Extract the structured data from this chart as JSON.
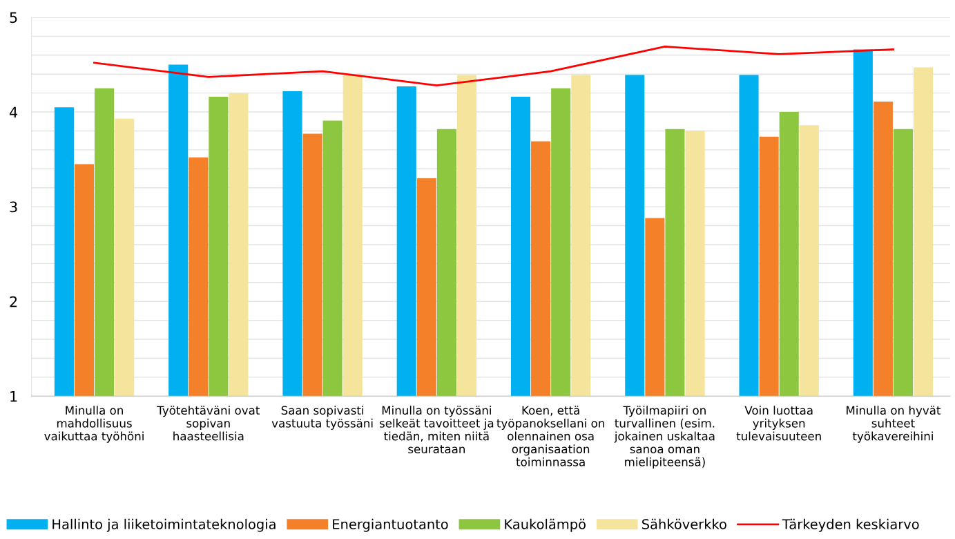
{
  "chart_data": {
    "type": "bar",
    "categories": [
      "Minulla on\nmahdollisuus\nvaikuttaa työhöni",
      "Työtehtäväni ovat\nsopivan\nhaasteellisia",
      "Saan sopivasti\nvastuuta työssäni",
      "Minulla on työssäni\nselkeät tavoitteet ja\ntiedän, miten niitä\nseurataan",
      "Koen, että\ntyöpanoksellani on\nolennainen osa\norganisaation\ntoiminnassa",
      "Työilmapiiri on\nturvallinen (esim.\njokainen uskaltaa\nsanoa oman\nmielipiteensä)",
      "Voin luottaa\nyrityksen\ntulevaisuuteen",
      "Minulla on hyvät\nsuhteet\ntyökavereihini"
    ],
    "series": [
      {
        "name": "Hallinto ja liiketoimintateknologia",
        "color": "#00b0f0",
        "values": [
          4.05,
          4.5,
          4.22,
          4.27,
          4.16,
          4.39,
          4.39,
          4.66
        ]
      },
      {
        "name": "Energiantuotanto",
        "color": "#f4812a",
        "values": [
          3.45,
          3.52,
          3.77,
          3.3,
          3.69,
          2.88,
          3.74,
          4.11
        ]
      },
      {
        "name": "Kaukolämpö",
        "color": "#8dc63f",
        "values": [
          4.25,
          4.16,
          3.91,
          3.82,
          4.25,
          3.82,
          4.0,
          3.82
        ]
      },
      {
        "name": "Sähköverkko",
        "color": "#f5e49c",
        "values": [
          3.93,
          4.2,
          4.39,
          4.39,
          4.39,
          3.8,
          3.86,
          4.47
        ]
      },
      {
        "name": "Tärkeyden keskiarvo",
        "type": "line",
        "color": "#ff0000",
        "values": [
          4.52,
          4.37,
          4.43,
          4.28,
          4.43,
          4.69,
          4.61,
          4.66
        ]
      }
    ],
    "ylim": [
      1,
      5
    ],
    "yticks": [
      1,
      {
        "value": 1.2,
        "label": null
      },
      {
        "value": 1.4,
        "label": null
      },
      {
        "value": 1.6,
        "label": null
      },
      {
        "value": 1.8,
        "label": null
      },
      2,
      {
        "value": 2.2,
        "label": null
      },
      {
        "value": 2.4,
        "label": null
      },
      {
        "value": 2.6,
        "label": null
      },
      {
        "value": 2.8,
        "label": null
      },
      3,
      {
        "value": 3.2,
        "label": null
      },
      {
        "value": 3.4,
        "label": null
      },
      {
        "value": 3.6,
        "label": null
      },
      {
        "value": 3.8,
        "label": null
      },
      4,
      {
        "value": 4.2,
        "label": null
      },
      {
        "value": 4.4,
        "label": null
      },
      {
        "value": 4.6,
        "label": null
      },
      {
        "value": 4.8,
        "label": null
      },
      5
    ],
    "grid": "y",
    "legend": "bottom"
  }
}
